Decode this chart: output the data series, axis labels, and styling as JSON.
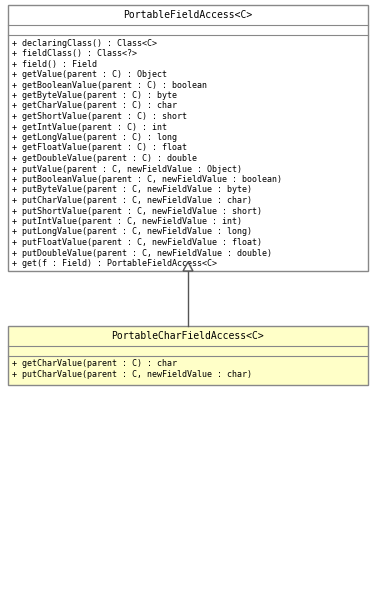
{
  "parent_class": {
    "name": "PortableFieldAccess<C>",
    "header_bg": "#ffffff",
    "body_bg": "#ffffff",
    "border_color": "#000000",
    "methods_section": [
      "+ declaringClass() : Class<C>",
      "+ fieldClass() : Class<?>",
      "+ field() : Field",
      "+ getValue(parent : C) : Object",
      "+ getBooleanValue(parent : C) : boolean",
      "+ getByteValue(parent : C) : byte",
      "+ getCharValue(parent : C) : char",
      "+ getShortValue(parent : C) : short",
      "+ getIntValue(parent : C) : int",
      "+ getLongValue(parent : C) : long",
      "+ getFloatValue(parent : C) : float",
      "+ getDoubleValue(parent : C) : double",
      "+ putValue(parent : C, newFieldValue : Object)",
      "+ putBooleanValue(parent : C, newFieldValue : boolean)",
      "+ putByteValue(parent : C, newFieldValue : byte)",
      "+ putCharValue(parent : C, newFieldValue : char)",
      "+ putShortValue(parent : C, newFieldValue : short)",
      "+ putIntValue(parent : C, newFieldValue : int)",
      "+ putLongValue(parent : C, newFieldValue : long)",
      "+ putFloatValue(parent : C, newFieldValue : float)",
      "+ putDoubleValue(parent : C, newFieldValue : double)",
      "+ get(f : Field) : PortableFieldAccess<C>"
    ]
  },
  "child_class": {
    "name": "PortableCharFieldAccess<C>",
    "header_bg": "#ffffc8",
    "body_bg": "#ffffc8",
    "border_color": "#000000",
    "methods_section": [
      "+ getCharValue(parent : C) : char",
      "+ putCharValue(parent : C, newFieldValue : char)"
    ]
  },
  "font_size": 6.0,
  "title_font_size": 7.0,
  "bg_color": "#ffffff",
  "text_color": "#000000",
  "line_color": "#555555",
  "border_color": "#888888"
}
